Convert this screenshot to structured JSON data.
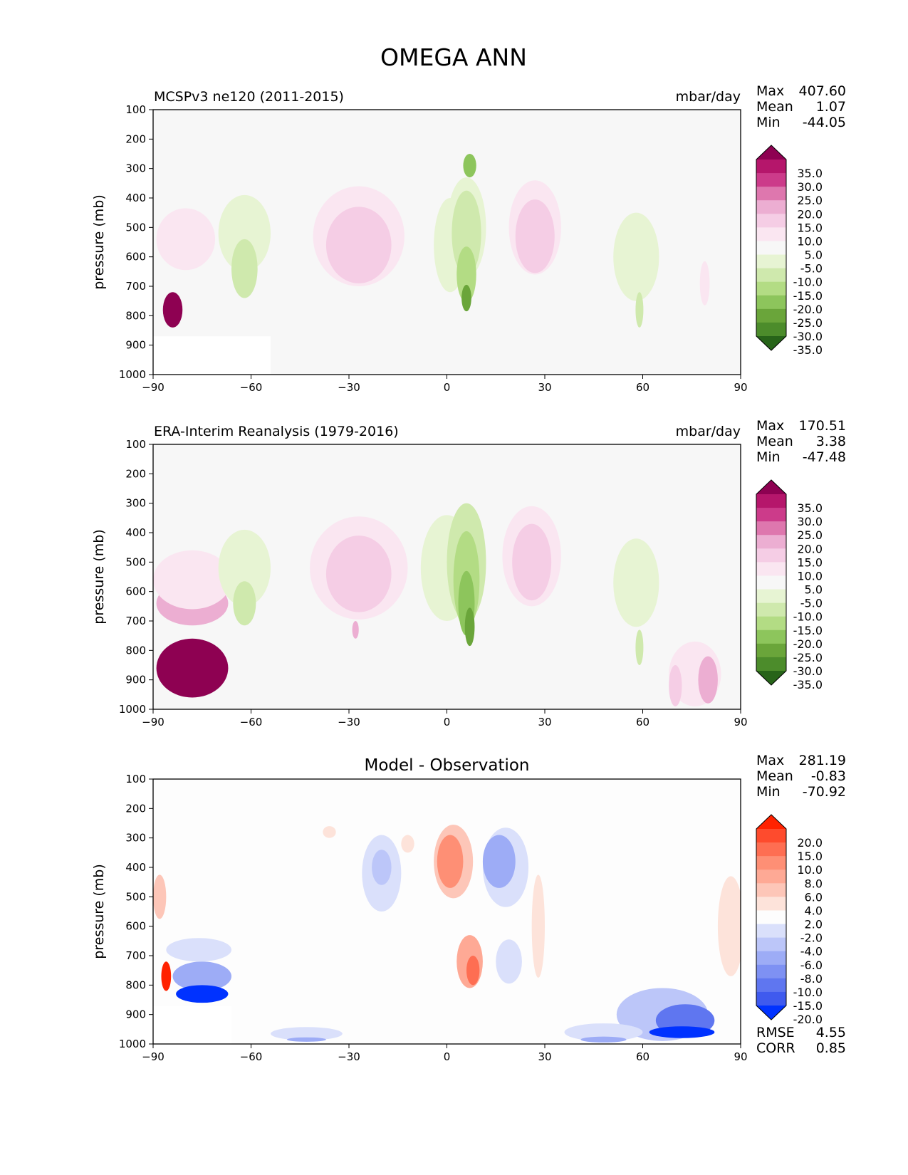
{
  "figure": {
    "title": "OMEGA ANN"
  },
  "colorbars": {
    "field": {
      "labels": [
        "35.0",
        "30.0",
        "25.0",
        "20.0",
        "15.0",
        "10.0",
        "5.0",
        "-5.0",
        "-10.0",
        "-15.0",
        "-20.0",
        "-25.0",
        "-30.0",
        "-35.0"
      ],
      "colors": [
        "#8e0152",
        "#b5166b",
        "#cc3b8a",
        "#de77ae",
        "#ecaed2",
        "#f5cde5",
        "#fae6f1",
        "#f7f7f7",
        "#e7f4d3",
        "#cfe9ad",
        "#b3dc84",
        "#8dc55c",
        "#6aa53a",
        "#4c8c2b",
        "#276419"
      ]
    },
    "diff": {
      "labels": [
        "20.0",
        "15.0",
        "10.0",
        "8.0",
        "6.0",
        "4.0",
        "2.0",
        "-2.0",
        "-4.0",
        "-6.0",
        "-8.0",
        "-10.0",
        "-15.0",
        "-20.0"
      ],
      "colors": [
        "#ff2200",
        "#fe4b2d",
        "#fe6e52",
        "#fe8f75",
        "#fea995",
        "#fdc6b8",
        "#fde3da",
        "#fdfdfd",
        "#dae0fb",
        "#bcc6f9",
        "#9dacf6",
        "#7e91f3",
        "#5f76f0",
        "#3f5aee",
        "#0032ff"
      ]
    }
  },
  "chart_data": [
    {
      "type": "contour",
      "panel": "test",
      "title": "MCSPv3 ne120 (2011-2015)",
      "units": "mbar/day",
      "xlabel": "",
      "ylabel": "pressure (mb)",
      "xlim": [
        -90,
        90
      ],
      "ylim": [
        1000,
        100
      ],
      "x_ticks": [
        "−90",
        "−60",
        "−30",
        "0",
        "30",
        "60",
        "90"
      ],
      "y_ticks": [
        "100",
        "200",
        "300",
        "400",
        "500",
        "600",
        "700",
        "800",
        "900",
        "1000"
      ],
      "stats": [
        {
          "label": "Max",
          "value": "407.60"
        },
        {
          "label": "Mean",
          "value": "1.07"
        },
        {
          "label": "Min",
          "value": "-44.05"
        }
      ],
      "masked_region": {
        "lat": [
          -90,
          -54
        ],
        "p": [
          870,
          1000
        ]
      },
      "features": [
        {
          "lat": -84,
          "p": 780,
          "dlat": 3,
          "dp": 120,
          "level": 7
        },
        {
          "lat": -80,
          "p": 540,
          "dlat": 9,
          "dp": 210,
          "level": 1
        },
        {
          "lat": -62,
          "p": 520,
          "dlat": 8,
          "dp": 260,
          "level": -1
        },
        {
          "lat": -62,
          "p": 640,
          "dlat": 4,
          "dp": 200,
          "level": -2
        },
        {
          "lat": -27,
          "p": 530,
          "dlat": 14,
          "dp": 340,
          "level": 1
        },
        {
          "lat": -27,
          "p": 560,
          "dlat": 10,
          "dp": 260,
          "level": 2
        },
        {
          "lat": 1,
          "p": 560,
          "dlat": 5,
          "dp": 320,
          "level": -1
        },
        {
          "lat": 6,
          "p": 500,
          "dlat": 6,
          "dp": 340,
          "level": -1
        },
        {
          "lat": 6,
          "p": 520,
          "dlat": 4.5,
          "dp": 290,
          "level": -2
        },
        {
          "lat": 6,
          "p": 660,
          "dlat": 3,
          "dp": 190,
          "level": -3
        },
        {
          "lat": 7,
          "p": 290,
          "dlat": 2,
          "dp": 80,
          "level": -4
        },
        {
          "lat": 6,
          "p": 740,
          "dlat": 1.5,
          "dp": 90,
          "level": -5
        },
        {
          "lat": 27,
          "p": 500,
          "dlat": 8,
          "dp": 320,
          "level": 1
        },
        {
          "lat": 27,
          "p": 530,
          "dlat": 6,
          "dp": 250,
          "level": 2
        },
        {
          "lat": 58,
          "p": 600,
          "dlat": 7,
          "dp": 300,
          "level": -1
        },
        {
          "lat": 59,
          "p": 780,
          "dlat": 1.2,
          "dp": 120,
          "level": -2
        },
        {
          "lat": 79,
          "p": 690,
          "dlat": 1.5,
          "dp": 150,
          "level": 1
        }
      ]
    },
    {
      "type": "contour",
      "panel": "reference",
      "title": "ERA-Interim Reanalysis (1979-2016)",
      "units": "mbar/day",
      "xlabel": "",
      "ylabel": "pressure (mb)",
      "xlim": [
        -90,
        90
      ],
      "ylim": [
        1000,
        100
      ],
      "x_ticks": [
        "−90",
        "−60",
        "−30",
        "0",
        "30",
        "60",
        "90"
      ],
      "y_ticks": [
        "100",
        "200",
        "300",
        "400",
        "500",
        "600",
        "700",
        "800",
        "900",
        "1000"
      ],
      "stats": [
        {
          "label": "Max",
          "value": "170.51"
        },
        {
          "label": "Mean",
          "value": "3.38"
        },
        {
          "label": "Min",
          "value": "-47.48"
        }
      ],
      "features": [
        {
          "lat": -78,
          "p": 860,
          "dlat": 11,
          "dp": 200,
          "level": 7
        },
        {
          "lat": -78,
          "p": 640,
          "dlat": 11,
          "dp": 150,
          "level": 3
        },
        {
          "lat": -78,
          "p": 560,
          "dlat": 12,
          "dp": 200,
          "level": 1
        },
        {
          "lat": -62,
          "p": 520,
          "dlat": 8,
          "dp": 260,
          "level": -1
        },
        {
          "lat": -62,
          "p": 640,
          "dlat": 3.5,
          "dp": 150,
          "level": -2
        },
        {
          "lat": -27,
          "p": 520,
          "dlat": 15,
          "dp": 350,
          "level": 1
        },
        {
          "lat": -27,
          "p": 540,
          "dlat": 10,
          "dp": 260,
          "level": 2
        },
        {
          "lat": -28,
          "p": 730,
          "dlat": 1,
          "dp": 60,
          "level": 3
        },
        {
          "lat": 0,
          "p": 520,
          "dlat": 8,
          "dp": 360,
          "level": -1
        },
        {
          "lat": 6,
          "p": 500,
          "dlat": 6,
          "dp": 400,
          "level": -2
        },
        {
          "lat": 6,
          "p": 560,
          "dlat": 4,
          "dp": 330,
          "level": -3
        },
        {
          "lat": 6,
          "p": 640,
          "dlat": 2.5,
          "dp": 220,
          "level": -4
        },
        {
          "lat": 7,
          "p": 720,
          "dlat": 1.5,
          "dp": 130,
          "level": -5
        },
        {
          "lat": 26,
          "p": 480,
          "dlat": 9,
          "dp": 340,
          "level": 1
        },
        {
          "lat": 26,
          "p": 500,
          "dlat": 6,
          "dp": 260,
          "level": 2
        },
        {
          "lat": 58,
          "p": 570,
          "dlat": 7,
          "dp": 300,
          "level": -1
        },
        {
          "lat": 59,
          "p": 790,
          "dlat": 1.2,
          "dp": 120,
          "level": -2
        },
        {
          "lat": 76,
          "p": 880,
          "dlat": 8,
          "dp": 220,
          "level": 1
        },
        {
          "lat": 80,
          "p": 900,
          "dlat": 3,
          "dp": 160,
          "level": 3
        },
        {
          "lat": 70,
          "p": 920,
          "dlat": 2,
          "dp": 140,
          "level": 2
        }
      ]
    },
    {
      "type": "contour",
      "panel": "difference",
      "title": "Model - Observation",
      "units": "",
      "xlabel": "",
      "ylabel": "pressure (mb)",
      "xlim": [
        -90,
        90
      ],
      "ylim": [
        1000,
        100
      ],
      "x_ticks": [
        "−90",
        "−60",
        "−30",
        "0",
        "30",
        "60",
        "90"
      ],
      "y_ticks": [
        "100",
        "200",
        "300",
        "400",
        "500",
        "600",
        "700",
        "800",
        "900",
        "1000"
      ],
      "stats": [
        {
          "label": "Max",
          "value": "281.19"
        },
        {
          "label": "Mean",
          "value": "-0.83"
        },
        {
          "label": "Min",
          "value": "-70.92"
        }
      ],
      "bottom_stats": [
        {
          "label": "RMSE",
          "value": "4.55"
        },
        {
          "label": "CORR",
          "value": "0.85"
        }
      ],
      "masked_region": {
        "lat": [
          -90,
          -66
        ],
        "p": [
          870,
          1000
        ]
      },
      "features": [
        {
          "lat": -86,
          "p": 770,
          "dlat": 1.5,
          "dp": 100,
          "level": 7
        },
        {
          "lat": -88,
          "p": 500,
          "dlat": 2,
          "dp": 150,
          "level": 2
        },
        {
          "lat": -75,
          "p": 770,
          "dlat": 9,
          "dp": 100,
          "level": -3
        },
        {
          "lat": -75,
          "p": 830,
          "dlat": 8,
          "dp": 60,
          "level": -7
        },
        {
          "lat": -76,
          "p": 680,
          "dlat": 10,
          "dp": 80,
          "level": -1
        },
        {
          "lat": -20,
          "p": 420,
          "dlat": 6,
          "dp": 260,
          "level": -1
        },
        {
          "lat": -20,
          "p": 400,
          "dlat": 3,
          "dp": 120,
          "level": -2
        },
        {
          "lat": -43,
          "p": 965,
          "dlat": 11,
          "dp": 45,
          "level": -1
        },
        {
          "lat": -43,
          "p": 985,
          "dlat": 6,
          "dp": 15,
          "level": -3
        },
        {
          "lat": 2,
          "p": 380,
          "dlat": 6,
          "dp": 250,
          "level": 2
        },
        {
          "lat": 1,
          "p": 380,
          "dlat": 4,
          "dp": 180,
          "level": 4
        },
        {
          "lat": 7,
          "p": 720,
          "dlat": 4,
          "dp": 180,
          "level": 3
        },
        {
          "lat": 8,
          "p": 750,
          "dlat": 2,
          "dp": 100,
          "level": 5
        },
        {
          "lat": 18,
          "p": 400,
          "dlat": 7,
          "dp": 270,
          "level": -1
        },
        {
          "lat": 16,
          "p": 380,
          "dlat": 5,
          "dp": 180,
          "level": -3
        },
        {
          "lat": 19,
          "p": 720,
          "dlat": 4,
          "dp": 150,
          "level": -1
        },
        {
          "lat": 28,
          "p": 600,
          "dlat": 2,
          "dp": 350,
          "level": 1
        },
        {
          "lat": -36,
          "p": 280,
          "dlat": 2,
          "dp": 40,
          "level": 1
        },
        {
          "lat": -12,
          "p": 320,
          "dlat": 2,
          "dp": 60,
          "level": 1
        },
        {
          "lat": 66,
          "p": 900,
          "dlat": 14,
          "dp": 180,
          "level": -2
        },
        {
          "lat": 73,
          "p": 920,
          "dlat": 9,
          "dp": 110,
          "level": -5
        },
        {
          "lat": 72,
          "p": 960,
          "dlat": 10,
          "dp": 40,
          "level": -7
        },
        {
          "lat": 48,
          "p": 960,
          "dlat": 12,
          "dp": 60,
          "level": -1
        },
        {
          "lat": 48,
          "p": 985,
          "dlat": 7,
          "dp": 20,
          "level": -3
        },
        {
          "lat": 87,
          "p": 600,
          "dlat": 4,
          "dp": 340,
          "level": 1
        }
      ]
    }
  ]
}
